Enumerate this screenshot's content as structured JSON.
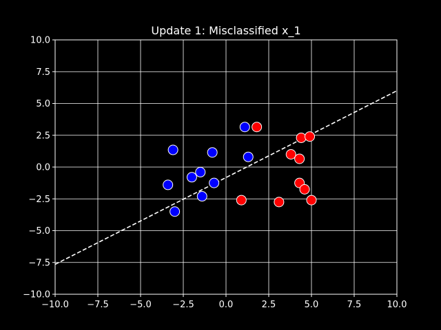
{
  "chart_data": {
    "type": "scatter",
    "title": "Update 1: Misclassified x_1",
    "xlabel": "",
    "ylabel": "",
    "xlim": [
      -10,
      10
    ],
    "ylim": [
      -10,
      10
    ],
    "x_ticks": [
      -10,
      -7.5,
      -5,
      -2.5,
      0,
      2.5,
      5,
      7.5,
      10
    ],
    "y_ticks": [
      -10,
      -7.5,
      -5,
      -2.5,
      0,
      2.5,
      5,
      7.5,
      10
    ],
    "x_tick_labels": [
      "−10.0",
      "−7.5",
      "−5.0",
      "−2.5",
      "0.0",
      "2.5",
      "5.0",
      "7.5",
      "10.0"
    ],
    "y_tick_labels": [
      "−10.0",
      "−7.5",
      "−5.0",
      "−2.5",
      "0.0",
      "2.5",
      "5.0",
      "7.5",
      "10.0"
    ],
    "grid": true,
    "background": "#000000",
    "grid_color": "#ffffff",
    "series": [
      {
        "color": "#0000ff",
        "marker": "circle",
        "edgecolor": "#ffffff",
        "points": [
          [
            1.1,
            3.15
          ],
          [
            -3.1,
            1.35
          ],
          [
            -0.8,
            1.15
          ],
          [
            1.3,
            0.8
          ],
          [
            -1.5,
            -0.4
          ],
          [
            -2.0,
            -0.8
          ],
          [
            -0.7,
            -1.25
          ],
          [
            -3.4,
            -1.4
          ],
          [
            -1.4,
            -2.3
          ],
          [
            -3.0,
            -3.5
          ]
        ]
      },
      {
        "color": "#ff0000",
        "marker": "circle",
        "edgecolor": "#ffffff",
        "points": [
          [
            1.8,
            3.15
          ],
          [
            4.4,
            2.3
          ],
          [
            4.9,
            2.4
          ],
          [
            3.8,
            1.0
          ],
          [
            4.3,
            0.65
          ],
          [
            4.3,
            -1.25
          ],
          [
            4.6,
            -1.75
          ],
          [
            0.9,
            -2.6
          ],
          [
            3.1,
            -2.75
          ],
          [
            5.0,
            -2.6
          ]
        ]
      }
    ],
    "decision_boundary": {
      "style": "dashed",
      "color": "#ffffff",
      "x": [
        -10,
        10
      ],
      "y": [
        -7.65,
        6.0
      ]
    }
  }
}
